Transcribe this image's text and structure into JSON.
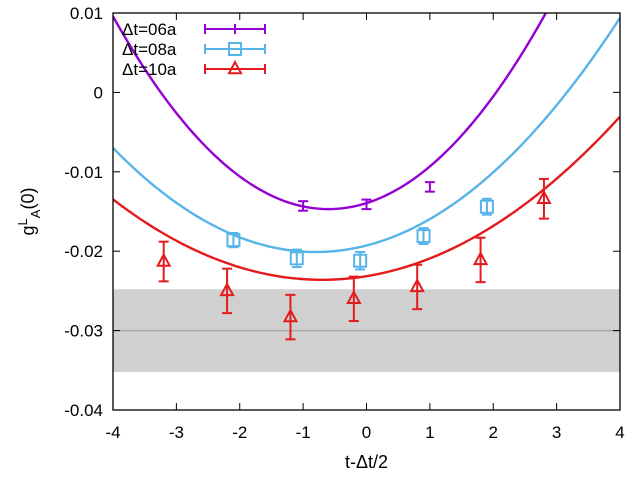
{
  "chart_data": {
    "type": "scatter",
    "xlabel": "t-Δt/2",
    "ylabel_main": "g",
    "ylabel_sup": "L",
    "ylabel_sub": "A",
    "ylabel_tail": "(0)",
    "xlim": [
      -4,
      4
    ],
    "ylim": [
      -0.04,
      0.01
    ],
    "xticks": [
      -4,
      -3,
      -2,
      -1,
      0,
      1,
      2,
      3,
      4
    ],
    "xtick_labels": [
      "-4",
      "-3",
      "-2",
      "-1",
      "0",
      "1",
      "2",
      "3",
      "4"
    ],
    "yticks": [
      -0.04,
      -0.03,
      -0.02,
      -0.01,
      0,
      0.01
    ],
    "ytick_labels": [
      "-0.04",
      "-0.03",
      "-0.02",
      "-0.01",
      "0",
      "0.01"
    ],
    "grid": false,
    "legend_position": "top-left",
    "band": {
      "center": -0.03,
      "low": -0.0352,
      "high": -0.0248,
      "color": "#d0d0d0",
      "line_color": "#a8a8a8"
    },
    "series": [
      {
        "name": "Δt=06a",
        "marker": "plus",
        "color": "#9400d3",
        "points": [
          {
            "x": -1.0,
            "y": -0.0143,
            "err": 0.0006
          },
          {
            "x": 0.0,
            "y": -0.0141,
            "err": 0.0006
          },
          {
            "x": 1.0,
            "y": -0.0119,
            "err": 0.0006
          }
        ],
        "fit": {
          "x0": -0.6,
          "y0": -0.0147,
          "a": 0.0021
        }
      },
      {
        "name": "Δt=08a",
        "marker": "open-square",
        "color": "#56b4e9",
        "points": [
          {
            "x": -2.1,
            "y": -0.0186,
            "err": 0.0009
          },
          {
            "x": -1.1,
            "y": -0.0209,
            "err": 0.0011
          },
          {
            "x": -0.1,
            "y": -0.0212,
            "err": 0.0011
          },
          {
            "x": 0.9,
            "y": -0.0181,
            "err": 0.001
          },
          {
            "x": 1.9,
            "y": -0.0144,
            "err": 0.001
          }
        ],
        "fit": {
          "x0": -0.8,
          "y0": -0.0201,
          "a": 0.00128
        }
      },
      {
        "name": "Δt=10a",
        "marker": "open-triangle",
        "color": "#e41a1c",
        "points": [
          {
            "x": -3.2,
            "y": -0.0213,
            "err": 0.0025
          },
          {
            "x": -2.2,
            "y": -0.025,
            "err": 0.0028
          },
          {
            "x": -1.2,
            "y": -0.0283,
            "err": 0.0028
          },
          {
            "x": -0.2,
            "y": -0.026,
            "err": 0.0028
          },
          {
            "x": 0.8,
            "y": -0.0245,
            "err": 0.0028
          },
          {
            "x": 1.8,
            "y": -0.0211,
            "err": 0.0028
          },
          {
            "x": 2.8,
            "y": -0.0134,
            "err": 0.0025
          }
        ],
        "fit": {
          "x0": -0.7,
          "y0": -0.0236,
          "a": 0.00093
        }
      }
    ]
  }
}
